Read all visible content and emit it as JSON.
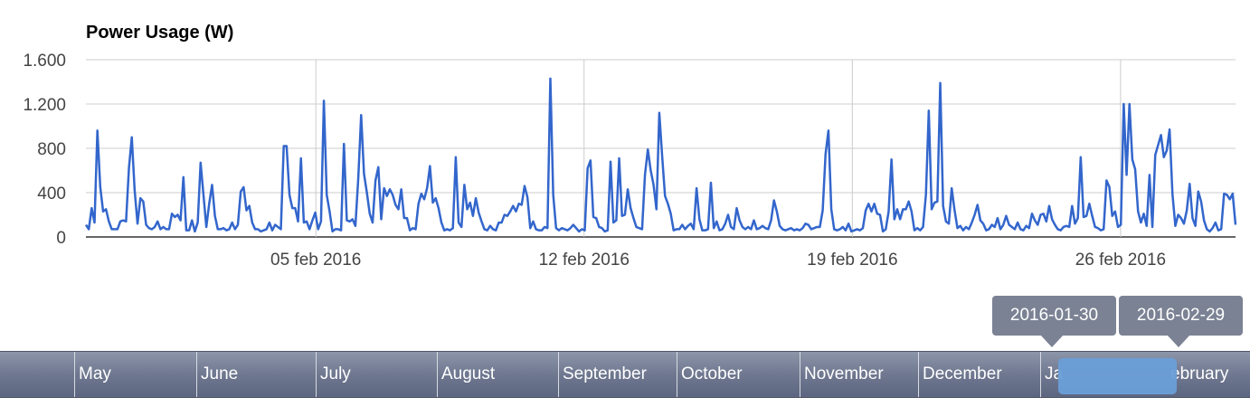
{
  "chart_data": {
    "type": "line",
    "title": "Power Usage (W)",
    "xlabel": "",
    "ylabel": "",
    "x_range": [
      "2016-01-30",
      "2016-02-29"
    ],
    "ylim": [
      0,
      1600
    ],
    "yticks": [
      0,
      400,
      800,
      1200,
      1600
    ],
    "ytick_labels": [
      "0",
      "400",
      "800",
      "1.200",
      "1.600"
    ],
    "xticks": [
      "2016-02-05",
      "2016-02-12",
      "2016-02-19",
      "2016-02-26"
    ],
    "xtick_labels": [
      "05 feb 2016",
      "12 feb 2016",
      "19 feb 2016",
      "26 feb 2016"
    ],
    "grid": "vertical at x ticks, horizontal at y ticks",
    "series": [
      {
        "color": "#3366cc",
        "x_start": "2016-01-30",
        "x_end": "2016-02-29",
        "values": [
          110,
          70,
          260,
          130,
          960,
          450,
          230,
          250,
          140,
          70,
          70,
          70,
          140,
          150,
          140,
          620,
          900,
          420,
          120,
          350,
          320,
          110,
          80,
          70,
          90,
          140,
          70,
          90,
          70,
          70,
          210,
          180,
          200,
          150,
          540,
          60,
          60,
          150,
          50,
          130,
          670,
          380,
          90,
          300,
          470,
          190,
          70,
          70,
          80,
          60,
          70,
          130,
          70,
          110,
          410,
          450,
          240,
          280,
          130,
          70,
          70,
          50,
          60,
          70,
          130,
          60,
          110,
          90,
          70,
          820,
          820,
          380,
          260,
          260,
          140,
          710,
          130,
          140,
          70,
          150,
          220,
          70,
          140,
          1230,
          380,
          230,
          50,
          70,
          70,
          60,
          840,
          150,
          140,
          160,
          100,
          530,
          1100,
          570,
          400,
          210,
          130,
          510,
          630,
          160,
          440,
          370,
          430,
          380,
          290,
          250,
          430,
          170,
          170,
          60,
          80,
          70,
          300,
          390,
          340,
          440,
          640,
          310,
          350,
          260,
          130,
          60,
          70,
          60,
          80,
          720,
          130,
          90,
          470,
          250,
          310,
          190,
          350,
          220,
          140,
          70,
          60,
          100,
          70,
          60,
          130,
          130,
          200,
          190,
          230,
          280,
          230,
          300,
          290,
          460,
          360,
          80,
          140,
          70,
          60,
          60,
          90,
          80,
          1430,
          380,
          80,
          60,
          80,
          70,
          60,
          80,
          110,
          80,
          50,
          70,
          60,
          620,
          690,
          180,
          170,
          90,
          80,
          50,
          60,
          680,
          130,
          150,
          710,
          190,
          200,
          430,
          260,
          170,
          90,
          80,
          70,
          560,
          790,
          600,
          470,
          250,
          1120,
          730,
          370,
          300,
          210,
          60,
          70,
          70,
          110,
          70,
          100,
          120,
          70,
          440,
          160,
          60,
          60,
          70,
          490,
          80,
          140,
          60,
          70,
          120,
          200,
          90,
          70,
          260,
          150,
          90,
          70,
          90,
          70,
          150,
          70,
          80,
          100,
          80,
          70,
          150,
          330,
          230,
          100,
          70,
          60,
          70,
          80,
          60,
          70,
          60,
          80,
          120,
          110,
          70,
          80,
          90,
          90,
          240,
          750,
          960,
          250,
          70,
          60,
          70,
          90,
          60,
          120,
          50,
          60,
          70,
          60,
          80,
          240,
          300,
          230,
          300,
          210,
          200,
          50,
          70,
          230,
          700,
          160,
          250,
          160,
          250,
          250,
          320,
          230,
          60,
          80,
          60,
          90,
          380,
          1140,
          250,
          310,
          320,
          1390,
          280,
          140,
          120,
          440,
          240,
          80,
          100,
          60,
          90,
          70,
          130,
          200,
          290,
          150,
          120,
          60,
          70,
          110,
          90,
          170,
          70,
          110,
          190,
          110,
          90,
          70,
          130,
          70,
          60,
          100,
          80,
          210,
          150,
          110,
          200,
          210,
          140,
          280,
          160,
          110,
          70,
          60,
          90,
          100,
          90,
          280,
          120,
          170,
          720,
          180,
          190,
          300,
          190,
          90,
          80,
          60,
          70,
          510,
          450,
          190,
          230,
          90,
          110,
          1200,
          560,
          1200,
          700,
          610,
          230,
          130,
          210,
          100,
          560,
          90,
          740,
          830,
          920,
          720,
          780,
          970,
          390,
          100,
          200,
          170,
          120,
          240,
          480,
          170,
          100,
          410,
          320,
          150,
          70,
          50,
          80,
          130,
          60,
          70,
          390,
          380,
          340,
          390,
          110
        ]
      }
    ]
  },
  "navigator": {
    "months": [
      "May",
      "June",
      "July",
      "August",
      "September",
      "October",
      "November",
      "December",
      "Ja",
      "ebruary"
    ],
    "range_start_label": "2016-01-30",
    "range_end_label": "2016-02-29"
  }
}
